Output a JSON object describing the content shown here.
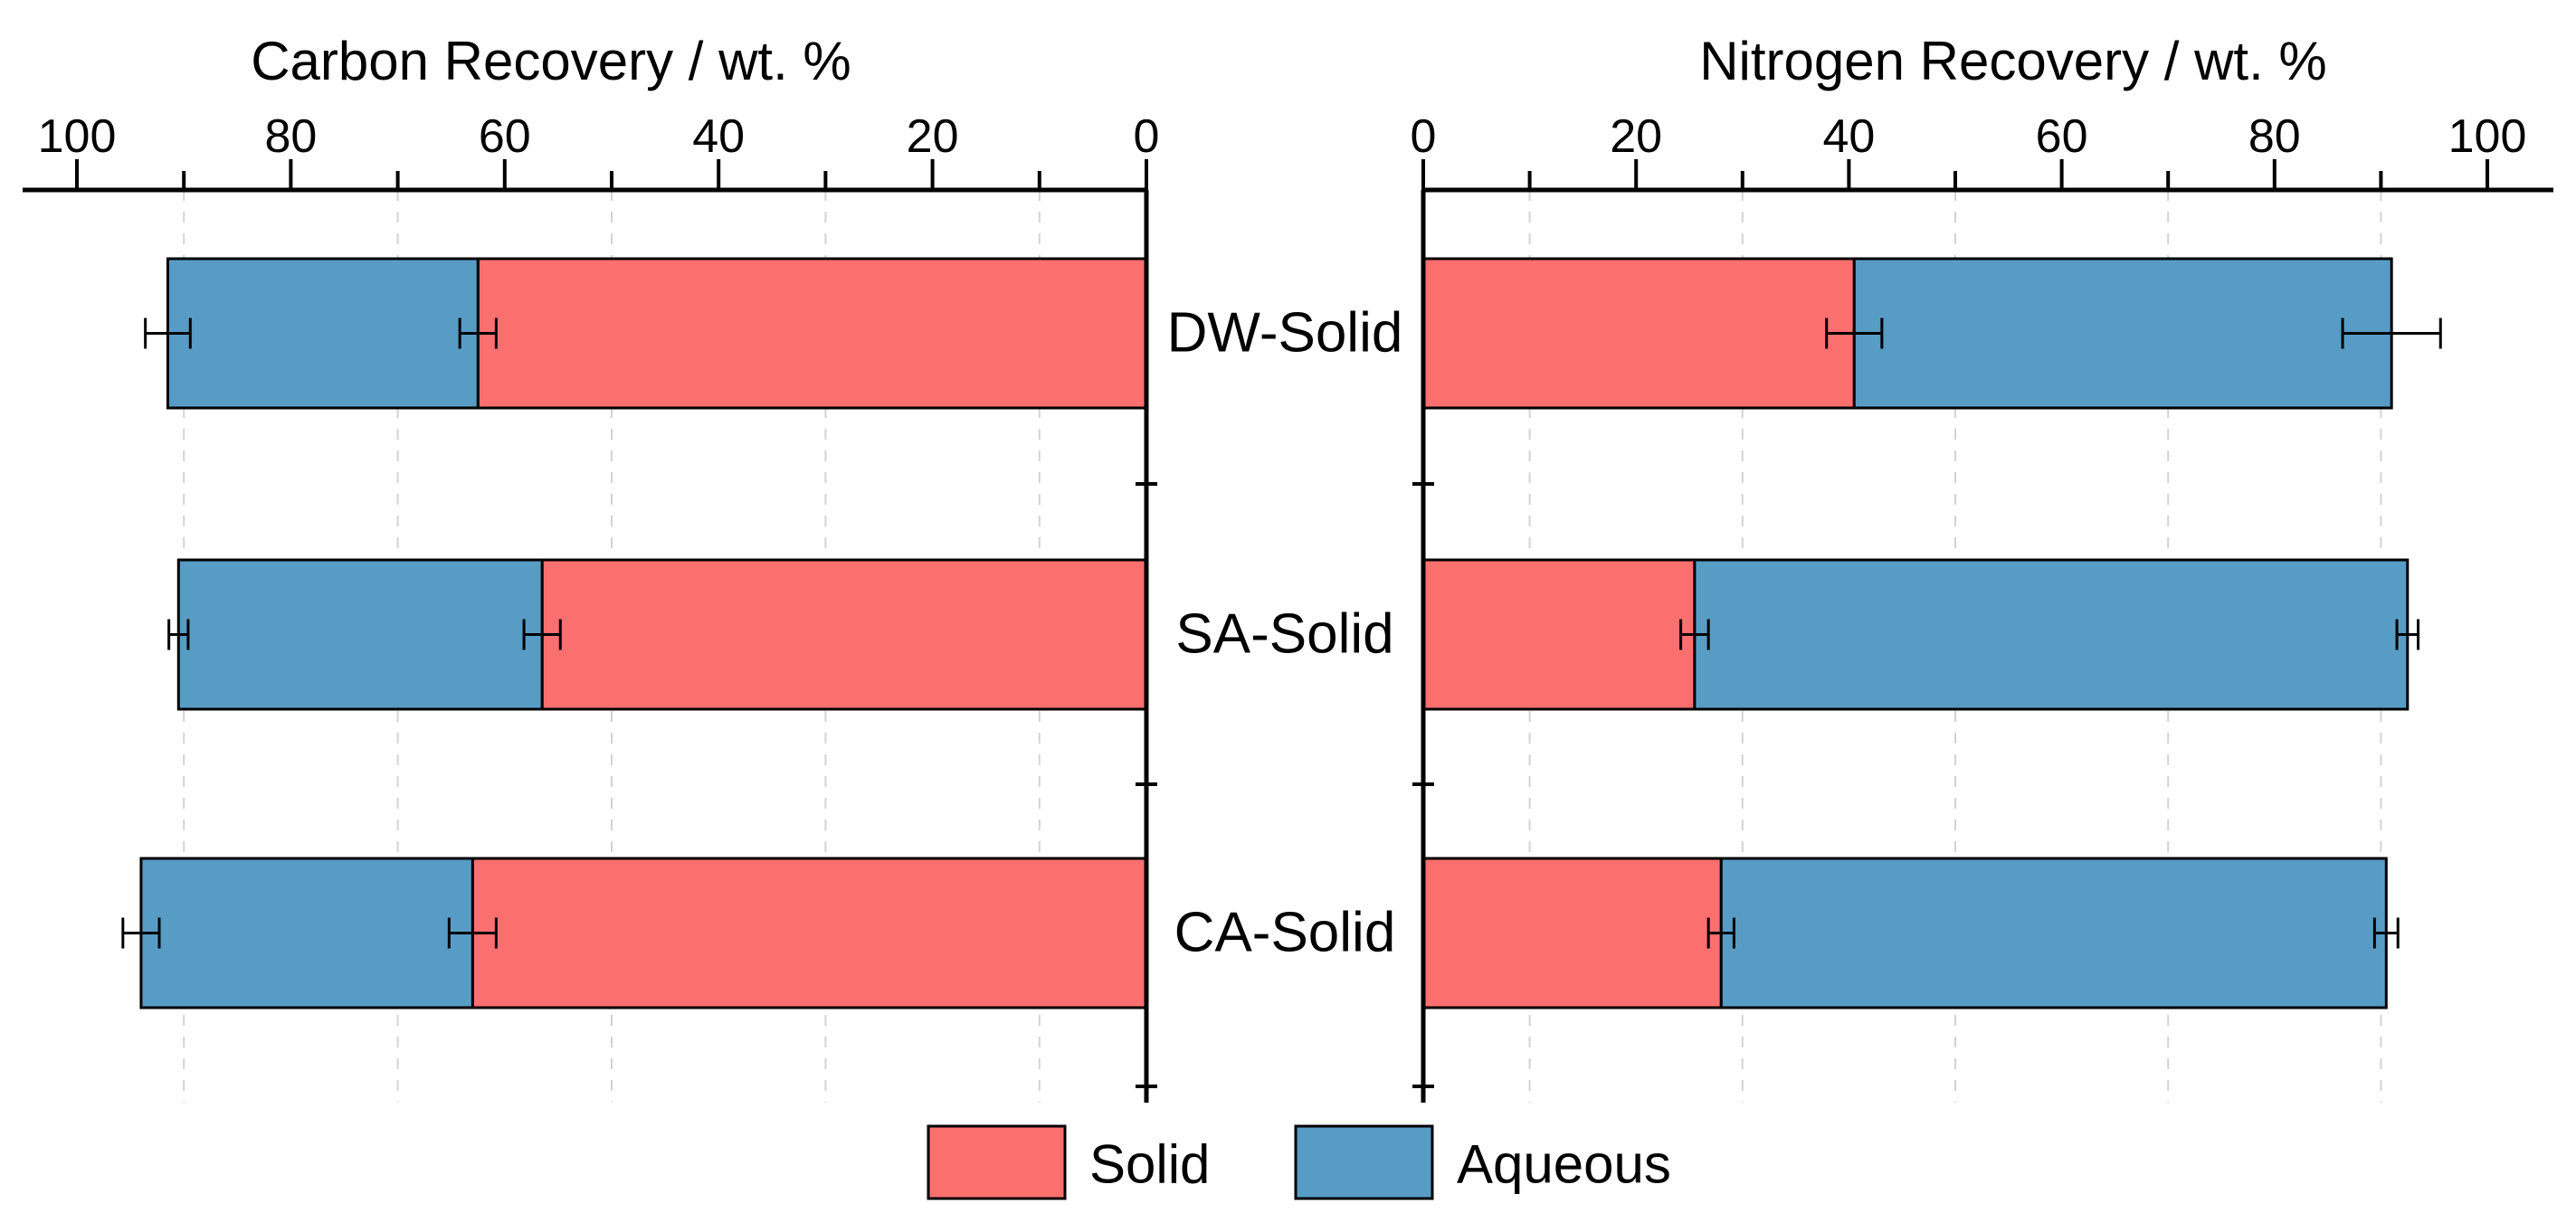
{
  "page": {
    "background_color": "#FFFFFF"
  },
  "category_labels": [
    "DW-Solid",
    "SA-Solid",
    "CA-Solid"
  ],
  "legend": {
    "items": [
      {
        "label": "Solid",
        "color": "#FC6F6F"
      },
      {
        "label": "Aqueous",
        "color": "#579CC5"
      }
    ]
  },
  "chart_data": [
    {
      "type": "bar",
      "orientation": "horizontal",
      "stacked": true,
      "title": "Carbon Recovery / wt. %",
      "axis": {
        "min": 0,
        "max": 100,
        "direction": "right-to-left",
        "major_ticks": [
          0,
          20,
          40,
          60,
          80,
          100
        ],
        "minor_ticks": [
          10,
          30,
          50,
          70,
          90
        ],
        "minor_gridlines": [
          10,
          30,
          50,
          70,
          90
        ],
        "grid_style": "dashed"
      },
      "categories": [
        "DW-Solid",
        "SA-Solid",
        "CA-Solid"
      ],
      "series": [
        {
          "name": "Solid",
          "color": "#FC6F6F",
          "values": [
            62.5,
            56.5,
            63.0
          ],
          "errors": [
            1.7,
            1.7,
            2.2
          ]
        },
        {
          "name": "Aqueous",
          "color": "#579CC5",
          "values": [
            29.0,
            34.0,
            31.0
          ],
          "errors": [
            2.1,
            0.9,
            1.7
          ]
        }
      ],
      "totals": [
        91.5,
        90.5,
        94.0
      ]
    },
    {
      "type": "bar",
      "orientation": "horizontal",
      "stacked": true,
      "title": "Nitrogen Recovery / wt. %",
      "axis": {
        "min": 0,
        "max": 100,
        "direction": "left-to-right",
        "major_ticks": [
          0,
          20,
          40,
          60,
          80,
          100
        ],
        "minor_ticks": [
          10,
          30,
          50,
          70,
          90
        ],
        "minor_gridlines": [
          10,
          30,
          50,
          70,
          90
        ],
        "grid_style": "dashed"
      },
      "categories": [
        "DW-Solid",
        "SA-Solid",
        "CA-Solid"
      ],
      "series": [
        {
          "name": "Solid",
          "color": "#FC6F6F",
          "values": [
            40.5,
            25.5,
            28.0
          ],
          "errors": [
            2.6,
            1.3,
            1.2
          ]
        },
        {
          "name": "Aqueous",
          "color": "#579CC5",
          "values": [
            50.5,
            67.0,
            62.5
          ],
          "errors": [
            4.6,
            1.0,
            1.1
          ]
        }
      ],
      "totals": [
        91.0,
        92.5,
        90.5
      ]
    }
  ]
}
